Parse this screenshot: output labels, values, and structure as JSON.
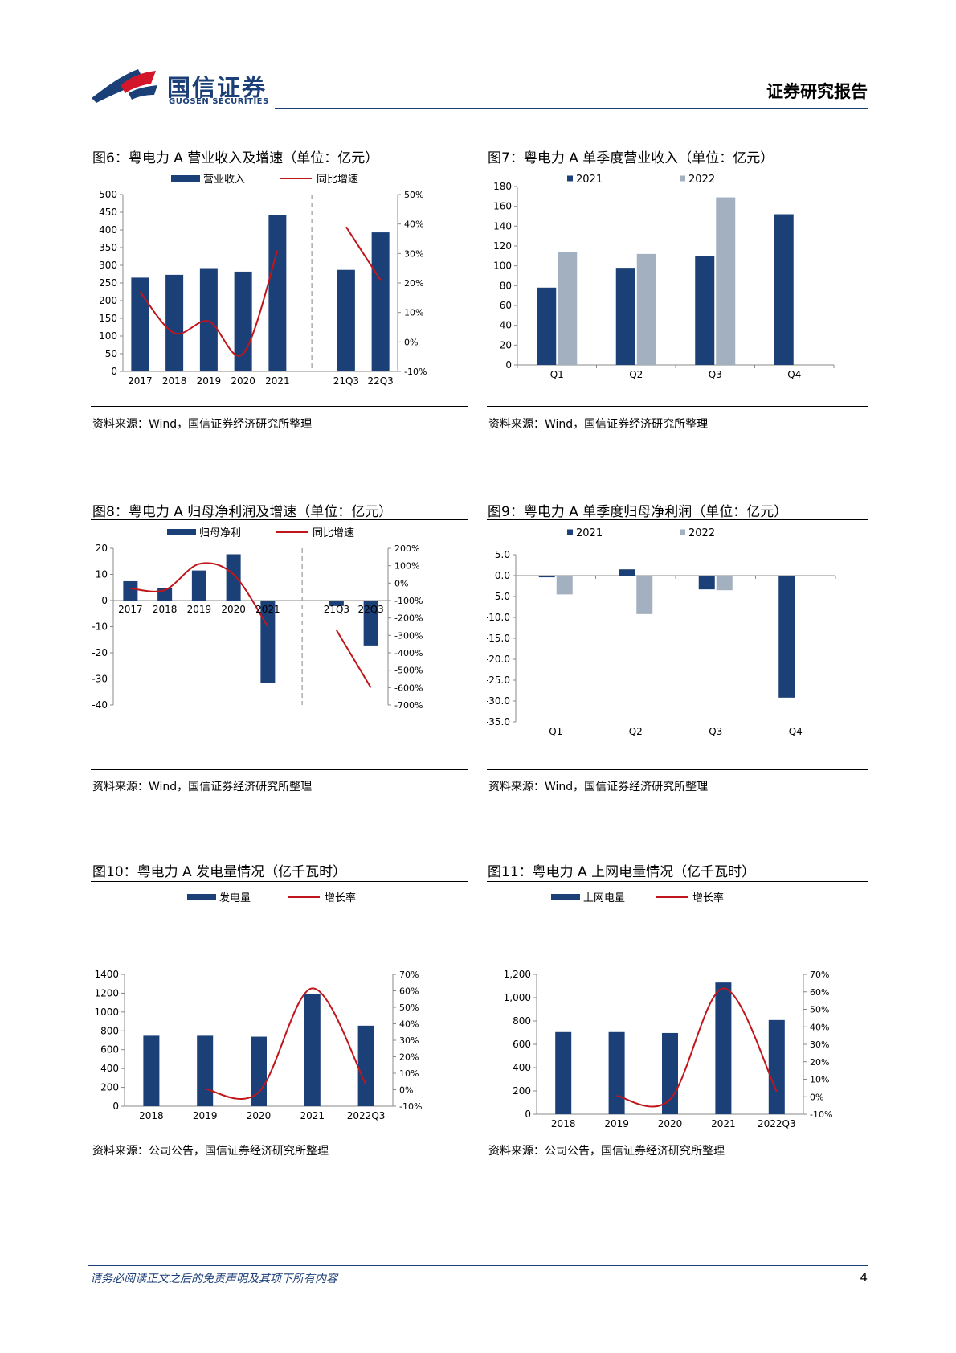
{
  "header": {
    "brand_cn": "国信证券",
    "brand_en": "GUOSEN SECURITIES",
    "report_type": "证券研究报告"
  },
  "colors": {
    "navy": "#1b3f77",
    "gray": "#a2b0bf",
    "red": "#c0161b"
  },
  "figures": [
    {
      "title": "图6：粤电力 A 营业收入及增速（单位：亿元）",
      "source": "资料来源：Wind，国信证券经济研究所整理",
      "chart_data": {
        "type": "bar",
        "categories": [
          "2017",
          "2018",
          "2019",
          "2020",
          "2021",
          "",
          "21Q3",
          "22Q3"
        ],
        "series": [
          {
            "name": "营业收入",
            "kind": "bar",
            "axis": "left",
            "values": [
              265,
              273,
              292,
              282,
              442,
              null,
              287,
              393
            ]
          },
          {
            "name": "同比增速",
            "kind": "line",
            "axis": "right",
            "values": [
              17,
              3,
              7,
              -4,
              31,
              null,
              39,
              21
            ],
            "unit": "%"
          }
        ],
        "ylim": [
          0,
          500
        ],
        "yticks": [
          "0",
          "50",
          "100",
          "150",
          "200",
          "250",
          "300",
          "350",
          "400",
          "450",
          "500"
        ],
        "y2lim": [
          -10,
          50
        ],
        "y2ticks": [
          "-10%",
          "0%",
          "10%",
          "20%",
          "30%",
          "40%",
          "50%"
        ],
        "separator_after": 5,
        "legend": "top"
      }
    },
    {
      "title": "图7：粤电力 A 单季度营业收入（单位：亿元）",
      "source": "资料来源：Wind，国信证券经济研究所整理",
      "chart_data": {
        "type": "bar",
        "categories": [
          "Q1",
          "Q2",
          "Q3",
          "Q4"
        ],
        "series": [
          {
            "name": "2021",
            "color": "navy",
            "values": [
              78,
              98,
              110,
              152
            ]
          },
          {
            "name": "2022",
            "color": "gray",
            "values": [
              114,
              112,
              169,
              null
            ]
          }
        ],
        "ylim": [
          0,
          180
        ],
        "yticks": [
          "0",
          "20",
          "40",
          "60",
          "80",
          "100",
          "120",
          "140",
          "160",
          "180"
        ],
        "legend": "top"
      }
    },
    {
      "title": "图8：粤电力 A 归母净利润及增速（单位：亿元）",
      "source": "资料来源：Wind，国信证券经济研究所整理",
      "chart_data": {
        "type": "bar",
        "categories": [
          "2017",
          "2018",
          "2019",
          "2020",
          "2021",
          "",
          "21Q3",
          "22Q3"
        ],
        "series": [
          {
            "name": "归母净利",
            "kind": "bar",
            "axis": "left",
            "values": [
              7.4,
              4.8,
              11.5,
              17.7,
              -31.5,
              null,
              -2.1,
              -17.2
            ]
          },
          {
            "name": "同比增速",
            "kind": "line",
            "axis": "right",
            "values": [
              -30,
              -40,
              110,
              50,
              -250,
              null,
              -270,
              -600
            ],
            "unit": "%"
          }
        ],
        "ylim": [
          -40,
          20
        ],
        "yticks": [
          "-40",
          "-30",
          "-20",
          "-10",
          "0",
          "10",
          "20"
        ],
        "y2lim": [
          -700,
          200
        ],
        "y2ticks": [
          "-700%",
          "-600%",
          "-500%",
          "-400%",
          "-300%",
          "-200%",
          "-100%",
          "0%",
          "100%",
          "200%"
        ],
        "separator_after": 5,
        "legend": "top"
      }
    },
    {
      "title": "图9：粤电力 A 单季度归母净利润（单位：亿元）",
      "source": "资料来源：Wind，国信证券经济研究所整理",
      "chart_data": {
        "type": "bar",
        "categories": [
          "Q1",
          "Q2",
          "Q3",
          "Q4"
        ],
        "series": [
          {
            "name": "2021",
            "color": "navy",
            "values": [
              -0.4,
              1.5,
              -3.3,
              -29.2
            ]
          },
          {
            "name": "2022",
            "color": "gray",
            "values": [
              -4.5,
              -9.2,
              -3.5,
              null
            ]
          }
        ],
        "ylim": [
          -35,
          5
        ],
        "yticks": [
          "-35.0",
          "-30.0",
          "-25.0",
          "-20.0",
          "-15.0",
          "-10.0",
          "-5.0",
          "0.0",
          "5.0"
        ],
        "legend": "top"
      }
    },
    {
      "title": "图10：粤电力 A 发电量情况（亿千瓦时）",
      "source": "资料来源：公司公告，国信证券经济研究所整理",
      "chart_data": {
        "type": "bar",
        "categories": [
          "2018",
          "2019",
          "2020",
          "2021",
          "2022Q3"
        ],
        "series": [
          {
            "name": "发电量",
            "kind": "bar",
            "axis": "left",
            "values": [
              748,
              748,
              738,
              1192,
              855
            ]
          },
          {
            "name": "增长率",
            "kind": "line",
            "axis": "right",
            "values": [
              null,
              0.5,
              -1.5,
              61.5,
              3
            ],
            "unit": "%"
          }
        ],
        "ylim": [
          0,
          1400
        ],
        "yticks": [
          "0",
          "200",
          "400",
          "600",
          "800",
          "1000",
          "1200",
          "1400"
        ],
        "y2lim": [
          -10,
          70
        ],
        "y2ticks": [
          "-10%",
          "0%",
          "10%",
          "20%",
          "30%",
          "40%",
          "50%",
          "60%",
          "70%"
        ],
        "legend": "top"
      }
    },
    {
      "title": "图11：粤电力 A 上网电量情况（亿千瓦时）",
      "source": "资料来源：公司公告，国信证券经济研究所整理",
      "chart_data": {
        "type": "bar",
        "categories": [
          "2018",
          "2019",
          "2020",
          "2021",
          "2022Q3"
        ],
        "series": [
          {
            "name": "上网电量",
            "kind": "bar",
            "axis": "left",
            "values": [
              705,
              705,
              697,
              1130,
              808
            ]
          },
          {
            "name": "增长率",
            "kind": "line",
            "axis": "right",
            "values": [
              null,
              0.5,
              -1.5,
              62,
              3
            ],
            "unit": "%"
          }
        ],
        "ylim": [
          0,
          1200
        ],
        "yticks": [
          "0",
          "200",
          "400",
          "600",
          "800",
          "1,000",
          "1,200"
        ],
        "y2lim": [
          -10,
          70
        ],
        "y2ticks": [
          "-10%",
          "0%",
          "10%",
          "20%",
          "30%",
          "40%",
          "50%",
          "60%",
          "70%"
        ],
        "legend": "top"
      }
    }
  ],
  "footer": {
    "disclaimer": "请务必阅读正文之后的免责声明及其项下所有内容",
    "page_number": "4"
  }
}
